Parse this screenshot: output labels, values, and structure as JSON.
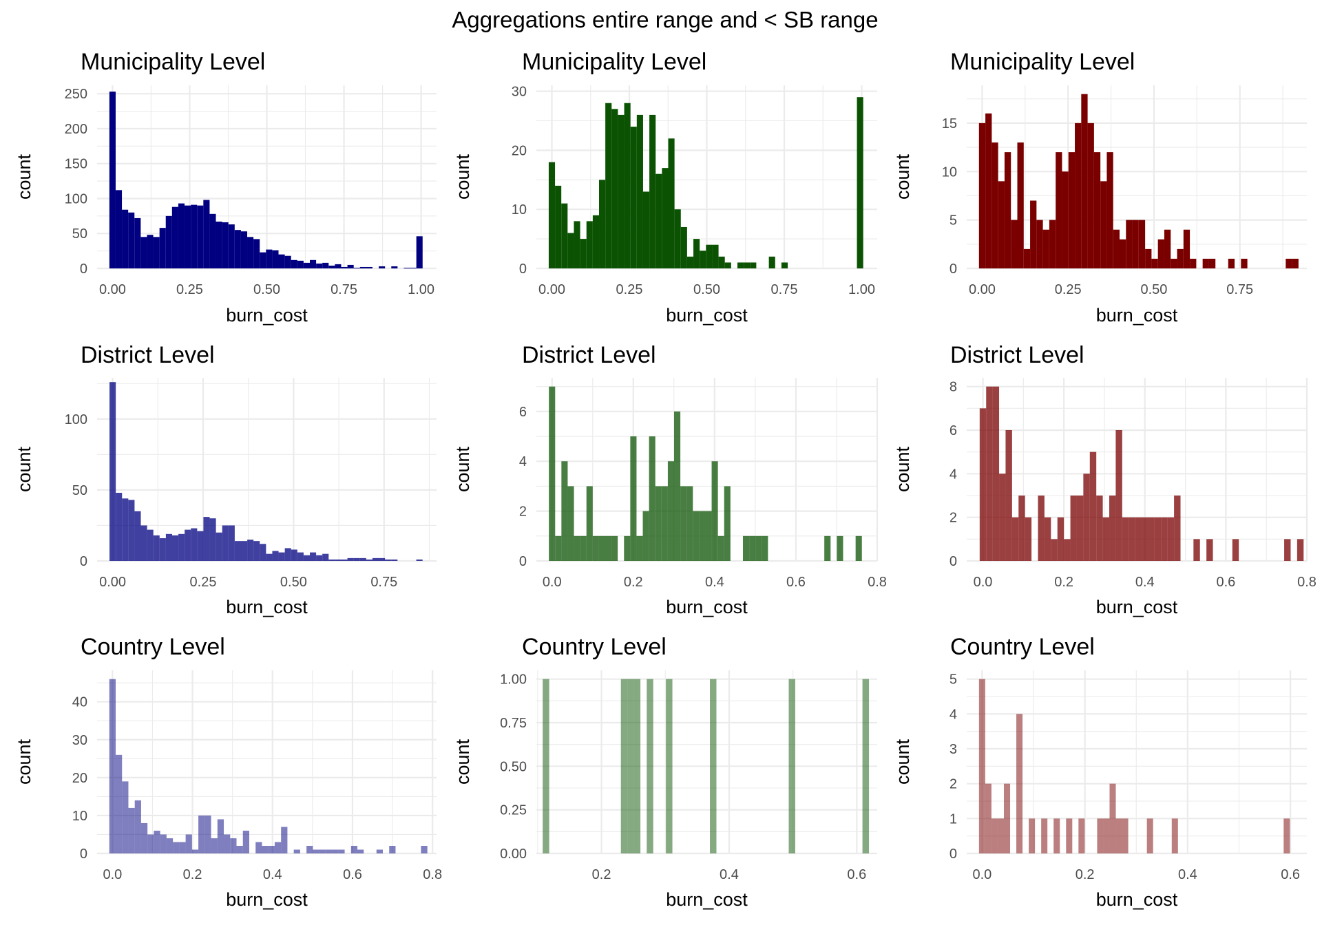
{
  "title": "Aggregations entire range and < SB range",
  "chart_data": [
    {
      "type": "bar",
      "id": "muni-all",
      "title": "Municipality Level",
      "xlabel": "burn_cost",
      "ylabel": "count",
      "color": "#000080",
      "opacity": 1.0,
      "xlim": [
        -0.05,
        1.05
      ],
      "ylim": [
        0,
        262
      ],
      "bin_width": 0.0203,
      "x_ticks": [
        0,
        0.25,
        0.5,
        0.75,
        1.0
      ],
      "x_tick_labels": [
        "0.00",
        "0.25",
        "0.50",
        "0.75",
        "1.00"
      ],
      "y_ticks": [
        0,
        50,
        100,
        150,
        200,
        250
      ],
      "y_tick_labels": [
        "0",
        "50",
        "100",
        "150",
        "200",
        "250"
      ],
      "x": [
        0,
        0.0203,
        0.0406,
        0.0609,
        0.0812,
        0.1015,
        0.1218,
        0.1421,
        0.1624,
        0.1827,
        0.203,
        0.2233,
        0.2436,
        0.2639,
        0.2842,
        0.3045,
        0.3248,
        0.3451,
        0.3654,
        0.3857,
        0.406,
        0.4263,
        0.4466,
        0.4669,
        0.4872,
        0.5075,
        0.5278,
        0.5481,
        0.5684,
        0.5887,
        0.609,
        0.6293,
        0.6496,
        0.6699,
        0.6902,
        0.7105,
        0.7308,
        0.7511,
        0.7714,
        0.7917,
        0.812,
        0.8323,
        0.8526,
        0.8729,
        0.8932,
        0.9135,
        0.9338,
        0.9541,
        0.9744,
        0.9947
      ],
      "values": [
        253,
        112,
        84,
        80,
        72,
        45,
        48,
        45,
        58,
        75,
        88,
        93,
        90,
        91,
        90,
        98,
        78,
        67,
        66,
        63,
        55,
        53,
        45,
        42,
        23,
        27,
        26,
        20,
        18,
        12,
        11,
        8,
        12,
        7,
        8,
        4,
        6,
        2,
        5,
        1,
        2,
        2,
        0,
        3,
        0,
        3,
        0,
        1,
        1,
        46
      ]
    },
    {
      "type": "bar",
      "id": "muni-sb",
      "title": "Municipality Level",
      "xlabel": "burn_cost",
      "ylabel": "count",
      "color": "#0b5303",
      "opacity": 1.0,
      "xlim": [
        -0.05,
        1.05
      ],
      "ylim": [
        0,
        31
      ],
      "bin_width": 0.0203,
      "x_ticks": [
        0,
        0.25,
        0.5,
        0.75,
        1.0
      ],
      "x_tick_labels": [
        "0.00",
        "0.25",
        "0.50",
        "0.75",
        "1.00"
      ],
      "y_ticks": [
        0,
        10,
        20,
        30
      ],
      "y_tick_labels": [
        "0",
        "10",
        "20",
        "30"
      ],
      "x": [
        0,
        0.0203,
        0.0406,
        0.0609,
        0.0812,
        0.1015,
        0.1218,
        0.1421,
        0.1624,
        0.1827,
        0.203,
        0.2233,
        0.2436,
        0.2639,
        0.2842,
        0.3045,
        0.3248,
        0.3451,
        0.3654,
        0.3857,
        0.406,
        0.4263,
        0.4466,
        0.4669,
        0.4872,
        0.5075,
        0.5278,
        0.5481,
        0.5684,
        0.5887,
        0.609,
        0.6293,
        0.6496,
        0.6699,
        0.6902,
        0.7105,
        0.7308,
        0.7511,
        0.7714,
        0.7917,
        0.812,
        0.8323,
        0.8526,
        0.8729,
        0.8932,
        0.9135,
        0.9338,
        0.9541,
        0.9744,
        0.9947
      ],
      "values": [
        18,
        14,
        11,
        6,
        8,
        5,
        8,
        9,
        15,
        28,
        27,
        26,
        28,
        24,
        26,
        13,
        26,
        16,
        17,
        22,
        10,
        7,
        2,
        5,
        3,
        4,
        4,
        2,
        1,
        0,
        1,
        1,
        1,
        0,
        0,
        2,
        0,
        1,
        0,
        0,
        0,
        0,
        0,
        0,
        0,
        0,
        0,
        0,
        0,
        29
      ]
    },
    {
      "type": "bar",
      "id": "muni-rest",
      "title": "Municipality Level",
      "xlabel": "burn_cost",
      "ylabel": "count",
      "color": "#7a0000",
      "opacity": 1.0,
      "xlim": [
        -0.045,
        0.945
      ],
      "ylim": [
        0,
        18.9
      ],
      "bin_width": 0.0186,
      "x_ticks": [
        0,
        0.25,
        0.5,
        0.75
      ],
      "x_tick_labels": [
        "0.00",
        "0.25",
        "0.50",
        "0.75"
      ],
      "y_ticks": [
        0,
        5,
        10,
        15
      ],
      "y_tick_labels": [
        "0",
        "5",
        "10",
        "15"
      ],
      "x": [
        0,
        0.0186,
        0.0372,
        0.0558,
        0.0744,
        0.093,
        0.1116,
        0.1302,
        0.1488,
        0.1674,
        0.186,
        0.2046,
        0.2232,
        0.2418,
        0.2604,
        0.279,
        0.2976,
        0.3162,
        0.3348,
        0.3534,
        0.372,
        0.3906,
        0.4092,
        0.4278,
        0.4464,
        0.465,
        0.4836,
        0.5022,
        0.5208,
        0.5394,
        0.558,
        0.5766,
        0.5952,
        0.6138,
        0.6324,
        0.651,
        0.6696,
        0.6882,
        0.7068,
        0.7254,
        0.744,
        0.7626,
        0.7812,
        0.7998,
        0.8184,
        0.837,
        0.8556,
        0.8742,
        0.8928,
        0.9114
      ],
      "values": [
        15,
        16,
        13,
        9,
        12,
        5,
        13,
        2,
        7,
        5,
        4,
        5,
        12,
        10,
        12,
        15,
        18,
        15,
        12,
        9,
        12,
        4,
        3,
        5,
        5,
        5,
        2,
        1,
        3,
        4,
        1,
        2,
        4,
        1,
        0,
        1,
        1,
        0,
        0,
        1,
        0,
        1,
        0,
        0,
        0,
        0,
        0,
        0,
        1,
        1
      ]
    },
    {
      "type": "bar",
      "id": "district-all",
      "title": "District Level",
      "xlabel": "burn_cost",
      "ylabel": "count",
      "color": "#000080",
      "opacity": 0.75,
      "xlim": [
        -0.043,
        0.895
      ],
      "ylim": [
        0,
        129
      ],
      "bin_width": 0.0173,
      "x_ticks": [
        0,
        0.25,
        0.5,
        0.75
      ],
      "x_tick_labels": [
        "0.00",
        "0.25",
        "0.50",
        "0.75"
      ],
      "y_ticks": [
        0,
        50,
        100
      ],
      "y_tick_labels": [
        "0",
        "50",
        "100"
      ],
      "x": [
        0,
        0.0173,
        0.0346,
        0.0519,
        0.0692,
        0.0865,
        0.1038,
        0.1211,
        0.1384,
        0.1557,
        0.173,
        0.1903,
        0.2076,
        0.2249,
        0.2422,
        0.2595,
        0.2768,
        0.2941,
        0.3114,
        0.3287,
        0.346,
        0.3633,
        0.3806,
        0.3979,
        0.4152,
        0.4325,
        0.4498,
        0.4671,
        0.4844,
        0.5017,
        0.519,
        0.5363,
        0.5536,
        0.5709,
        0.5882,
        0.6055,
        0.6228,
        0.6401,
        0.6574,
        0.6747,
        0.692,
        0.7093,
        0.7266,
        0.7439,
        0.7612,
        0.7785,
        0.7958,
        0.8131,
        0.8304,
        0.8477
      ],
      "values": [
        126,
        48,
        44,
        43,
        35,
        25,
        22,
        18,
        16,
        19,
        18,
        19,
        22,
        23,
        21,
        31,
        30,
        20,
        25,
        25,
        14,
        14,
        15,
        14,
        12,
        5,
        7,
        6,
        9,
        8,
        6,
        4,
        6,
        4,
        5,
        1,
        1,
        1,
        2,
        2,
        2,
        1,
        2,
        2,
        1,
        1,
        0,
        0,
        0,
        1
      ]
    },
    {
      "type": "bar",
      "id": "district-sb",
      "title": "District Level",
      "xlabel": "burn_cost",
      "ylabel": "count",
      "color": "#0b5303",
      "opacity": 0.75,
      "xlim": [
        -0.0385,
        0.8
      ],
      "ylim": [
        0,
        7.35
      ],
      "bin_width": 0.0154,
      "x_ticks": [
        0,
        0.2,
        0.4,
        0.6,
        0.8
      ],
      "x_tick_labels": [
        "0.0",
        "0.2",
        "0.4",
        "0.6",
        "0.8"
      ],
      "y_ticks": [
        0,
        2,
        4,
        6
      ],
      "y_tick_labels": [
        "0",
        "2",
        "4",
        "6"
      ],
      "x": [
        0,
        0.0154,
        0.0308,
        0.0462,
        0.0616,
        0.077,
        0.0924,
        0.1078,
        0.1232,
        0.1386,
        0.154,
        0.1694,
        0.1848,
        0.2002,
        0.2156,
        0.231,
        0.2464,
        0.2618,
        0.2772,
        0.2926,
        0.308,
        0.3234,
        0.3388,
        0.3542,
        0.3696,
        0.385,
        0.4004,
        0.4158,
        0.4312,
        0.4466,
        0.462,
        0.4774,
        0.4928,
        0.5082,
        0.5236,
        0.539,
        0.5544,
        0.5698,
        0.5852,
        0.6006,
        0.616,
        0.6314,
        0.6468,
        0.6622,
        0.6776,
        0.693,
        0.7084,
        0.7238,
        0.7392,
        0.7546
      ],
      "values": [
        7,
        1,
        4,
        3,
        1,
        1,
        3,
        1,
        1,
        1,
        1,
        0,
        1,
        5,
        1,
        2,
        5,
        3,
        3,
        4,
        6,
        3,
        3,
        2,
        2,
        2,
        4,
        1,
        3,
        0,
        0,
        1,
        1,
        1,
        1,
        0,
        0,
        0,
        0,
        0,
        0,
        0,
        0,
        0,
        1,
        0,
        1,
        0,
        0,
        1
      ]
    },
    {
      "type": "bar",
      "id": "district-rest",
      "title": "District Level",
      "xlabel": "burn_cost",
      "ylabel": "count",
      "color": "#7a0000",
      "opacity": 0.75,
      "xlim": [
        -0.04,
        0.8
      ],
      "ylim": [
        0,
        8.4
      ],
      "bin_width": 0.016,
      "x_ticks": [
        0,
        0.2,
        0.4,
        0.6,
        0.8
      ],
      "x_tick_labels": [
        "0.0",
        "0.2",
        "0.4",
        "0.6",
        "0.8"
      ],
      "y_ticks": [
        0,
        2,
        4,
        6,
        8
      ],
      "y_tick_labels": [
        "0",
        "2",
        "4",
        "6",
        "8"
      ],
      "x": [
        0,
        0.016,
        0.032,
        0.048,
        0.064,
        0.08,
        0.096,
        0.112,
        0.128,
        0.144,
        0.16,
        0.176,
        0.192,
        0.208,
        0.224,
        0.24,
        0.256,
        0.272,
        0.288,
        0.304,
        0.32,
        0.336,
        0.352,
        0.368,
        0.384,
        0.4,
        0.416,
        0.432,
        0.448,
        0.464,
        0.48,
        0.496,
        0.512,
        0.528,
        0.544,
        0.56,
        0.576,
        0.592,
        0.608,
        0.624,
        0.64,
        0.656,
        0.672,
        0.688,
        0.704,
        0.72,
        0.736,
        0.752,
        0.768,
        0.784
      ],
      "values": [
        7,
        8,
        8,
        4,
        6,
        2,
        3,
        2,
        0,
        3,
        2,
        1,
        2,
        1,
        3,
        3,
        4,
        5,
        3,
        2,
        3,
        6,
        2,
        2,
        2,
        2,
        2,
        2,
        2,
        2,
        3,
        0,
        0,
        1,
        0,
        1,
        0,
        0,
        0,
        1,
        0,
        0,
        0,
        0,
        0,
        0,
        0,
        1,
        0,
        1
      ]
    },
    {
      "type": "bar",
      "id": "country-all",
      "title": "Country Level",
      "xlabel": "burn_cost",
      "ylabel": "count",
      "color": "#000080",
      "opacity": 0.5,
      "xlim": [
        -0.0385,
        0.81
      ],
      "ylim": [
        0,
        48.3
      ],
      "bin_width": 0.0159,
      "x_ticks": [
        0,
        0.2,
        0.4,
        0.6,
        0.8
      ],
      "x_tick_labels": [
        "0.0",
        "0.2",
        "0.4",
        "0.6",
        "0.8"
      ],
      "y_ticks": [
        0,
        10,
        20,
        30,
        40
      ],
      "y_tick_labels": [
        "0",
        "10",
        "20",
        "30",
        "40"
      ],
      "x": [
        0,
        0.0159,
        0.0318,
        0.0477,
        0.0636,
        0.0795,
        0.0954,
        0.1113,
        0.1272,
        0.1431,
        0.159,
        0.1749,
        0.1908,
        0.2067,
        0.2226,
        0.2385,
        0.2544,
        0.2703,
        0.2862,
        0.3021,
        0.318,
        0.3339,
        0.3498,
        0.3657,
        0.3816,
        0.3975,
        0.4134,
        0.4293,
        0.4452,
        0.4611,
        0.477,
        0.4929,
        0.5088,
        0.5247,
        0.5406,
        0.5565,
        0.5724,
        0.5883,
        0.6042,
        0.6201,
        0.636,
        0.6519,
        0.6678,
        0.6837,
        0.6996,
        0.7155,
        0.7314,
        0.7473,
        0.7632,
        0.7791
      ],
      "values": [
        46,
        26,
        19,
        12,
        14,
        8,
        5,
        6,
        5,
        4,
        3,
        3,
        5,
        1,
        10,
        10,
        4,
        9,
        5,
        4,
        2,
        6,
        0,
        3,
        2,
        2,
        3,
        7,
        0,
        1,
        0,
        2,
        1,
        1,
        1,
        1,
        1,
        0,
        2,
        1,
        0,
        0,
        1,
        0,
        2,
        0,
        0,
        0,
        0,
        2
      ]
    },
    {
      "type": "bar",
      "id": "country-sb",
      "title": "Country Level",
      "xlabel": "burn_cost",
      "ylabel": "count",
      "color": "#0b5303",
      "opacity": 0.5,
      "xlim": [
        0.098,
        0.632
      ],
      "ylim": [
        0,
        1.05
      ],
      "bin_width": 0.0102,
      "x_ticks": [
        0.2,
        0.4,
        0.6
      ],
      "x_tick_labels": [
        "0.2",
        "0.4",
        "0.6"
      ],
      "y_ticks": [
        0,
        0.25,
        0.5,
        0.75,
        1.0
      ],
      "y_tick_labels": [
        "0.00",
        "0.25",
        "0.50",
        "0.75",
        "1.00"
      ],
      "x": [
        0.113,
        0.2355,
        0.2457,
        0.2559,
        0.276,
        0.306,
        0.375,
        0.4985,
        0.614
      ],
      "values": [
        1,
        1,
        1,
        1,
        1,
        1,
        1,
        1,
        1
      ]
    },
    {
      "type": "bar",
      "id": "country-rest",
      "title": "Country Level",
      "xlabel": "burn_cost",
      "ylabel": "count",
      "color": "#7a0000",
      "opacity": 0.5,
      "xlim": [
        -0.03,
        0.632
      ],
      "ylim": [
        0,
        5.25
      ],
      "bin_width": 0.0121,
      "x_ticks": [
        0,
        0.2,
        0.4,
        0.6
      ],
      "x_tick_labels": [
        "0.0",
        "0.2",
        "0.4",
        "0.6"
      ],
      "y_ticks": [
        0,
        1,
        2,
        3,
        4,
        5
      ],
      "y_tick_labels": [
        "0",
        "1",
        "2",
        "3",
        "4",
        "5"
      ],
      "x": [
        0,
        0.0121,
        0.0242,
        0.0363,
        0.0484,
        0.0605,
        0.0726,
        0.0847,
        0.0968,
        0.1089,
        0.121,
        0.1331,
        0.1452,
        0.1573,
        0.1694,
        0.1815,
        0.1936,
        0.2057,
        0.2178,
        0.2299,
        0.242,
        0.2541,
        0.2662,
        0.2783,
        0.2904,
        0.3025,
        0.3146,
        0.3267,
        0.3388,
        0.3509,
        0.363,
        0.3751,
        0.3872,
        0.3993,
        0.4114,
        0.4235,
        0.4356,
        0.4477,
        0.4598,
        0.4719,
        0.484,
        0.4961,
        0.5082,
        0.5203,
        0.5324,
        0.5445,
        0.5566,
        0.5687,
        0.5808,
        0.5929
      ],
      "values": [
        5,
        2,
        1,
        1,
        2,
        0,
        4,
        0,
        1,
        0,
        1,
        0,
        1,
        0,
        1,
        0,
        1,
        0,
        0,
        1,
        1,
        2,
        1,
        1,
        0,
        0,
        0,
        1,
        0,
        0,
        0,
        1,
        0,
        0,
        0,
        0,
        0,
        0,
        0,
        0,
        0,
        0,
        0,
        0,
        0,
        0,
        0,
        0,
        0,
        1
      ]
    }
  ]
}
